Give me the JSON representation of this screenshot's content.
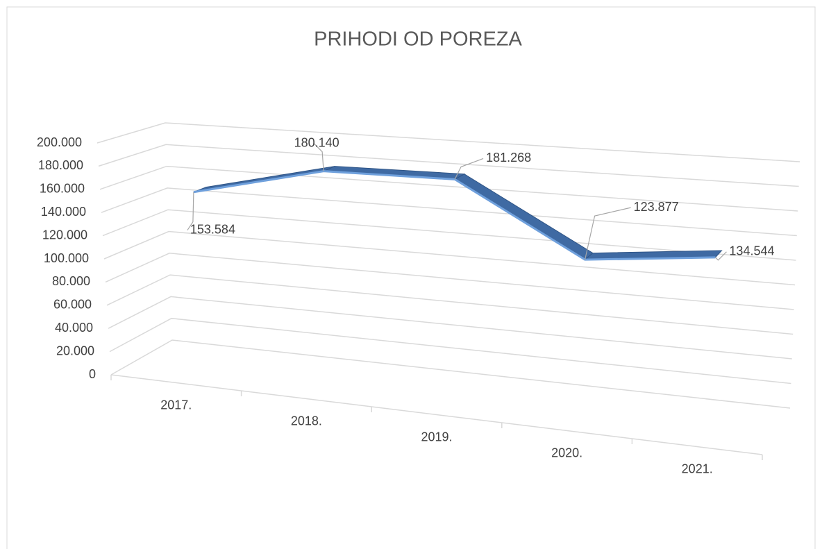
{
  "chart_data": {
    "type": "line3d",
    "title": "PRIHODI OD POREZA",
    "categories": [
      "2017.",
      "2018.",
      "2019.",
      "2020.",
      "2021."
    ],
    "values": [
      153584,
      180140,
      181268,
      123877,
      134544
    ],
    "value_labels": [
      "153.584",
      "180.140",
      "181.268",
      "123.877",
      "134.544"
    ],
    "color": "#3f6aa3",
    "ylim": [
      0,
      200000
    ],
    "yticks": [
      0,
      {
        "value": 20000,
        "label": "20.000"
      },
      {
        "value": 40000,
        "label": "40.000"
      },
      {
        "value": 60000,
        "label": "60.000"
      },
      {
        "value": 80000,
        "label": "80.000"
      },
      {
        "value": 100000,
        "label": "100.000"
      },
      {
        "value": 120000,
        "label": "120.000"
      },
      {
        "value": 140000,
        "label": "140.000"
      },
      {
        "value": 160000,
        "label": "160.000"
      },
      {
        "value": 180000,
        "label": "180.000"
      },
      {
        "value": 200000,
        "label": "200.000"
      }
    ],
    "grid": true
  }
}
